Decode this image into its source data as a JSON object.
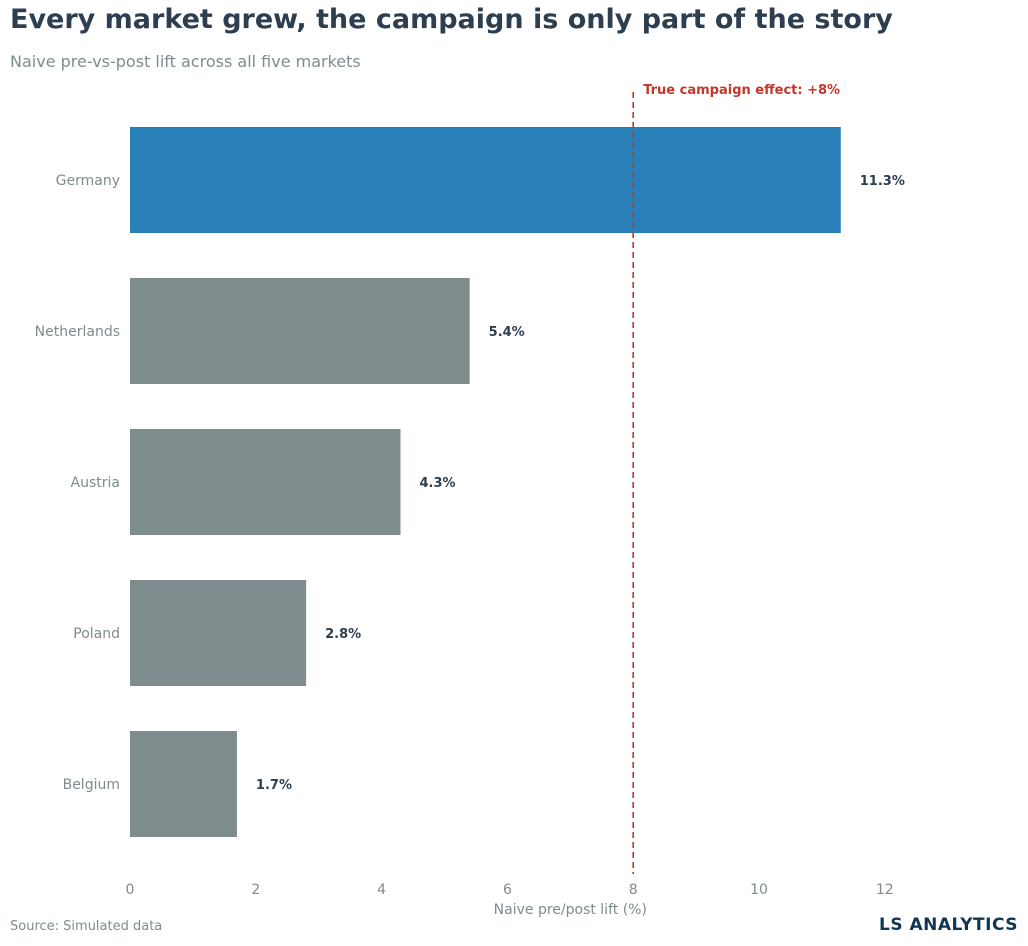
{
  "header": {
    "title": "Every market grew, the campaign is only part of the story",
    "subtitle": "Naive pre-vs-post lift across all five markets"
  },
  "footer": {
    "source": "Source: Simulated data",
    "brand": "LS ANALYTICS"
  },
  "colors": {
    "highlight": "#2980b9",
    "bar": "#7f8c8d",
    "reference_line": "#c0392b",
    "text_dark": "#2c3e50",
    "text_muted": "#7f8c8d"
  },
  "chart_data": {
    "type": "bar",
    "orientation": "horizontal",
    "title": "Every market grew, the campaign is only part of the story",
    "subtitle": "Naive pre-vs-post lift across all five markets",
    "xlabel": "Naive pre/post lift (%)",
    "ylabel": "",
    "categories": [
      "Germany",
      "Netherlands",
      "Austria",
      "Poland",
      "Belgium"
    ],
    "values": [
      11.3,
      5.4,
      4.3,
      2.8,
      1.7
    ],
    "value_labels": [
      "11.3%",
      "5.4%",
      "4.3%",
      "2.8%",
      "1.7%"
    ],
    "highlighted": "Germany",
    "xlim": [
      0,
      14
    ],
    "xticks": [
      0,
      2,
      4,
      6,
      8,
      10,
      12
    ],
    "grid": false,
    "reference_line": {
      "value": 8,
      "label": "True campaign effect: +8%"
    }
  }
}
